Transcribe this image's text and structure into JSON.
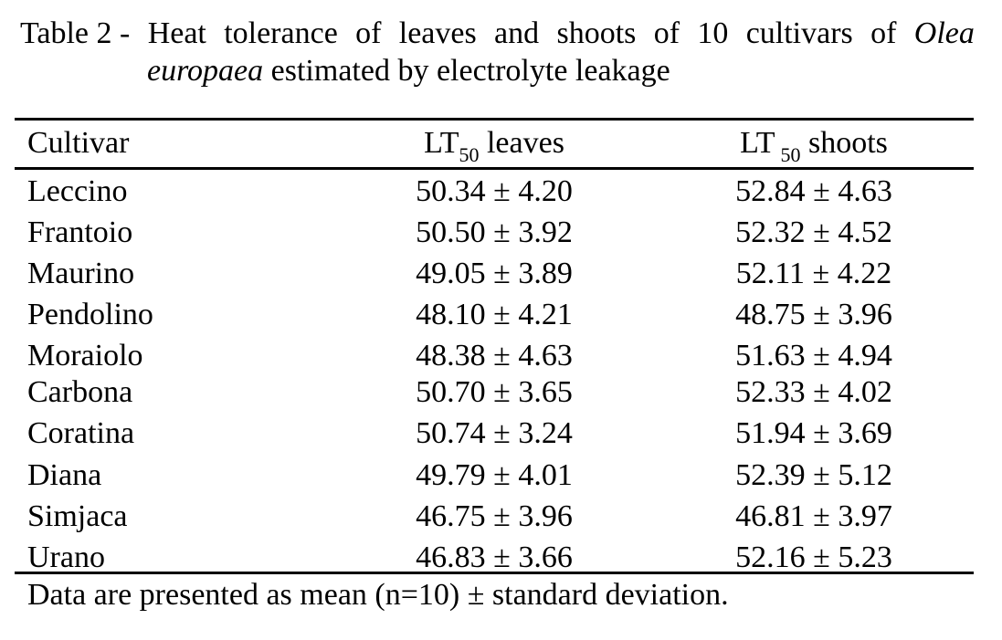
{
  "caption": {
    "prefix": "Table 2 -",
    "words": [
      "Heat",
      "tolerance",
      "of",
      "leaves",
      "and",
      "shoots",
      "of",
      "10",
      "cultivars",
      "of"
    ],
    "genus": "Olea",
    "species": "europaea",
    "rest": " estimated by electrolyte leakage"
  },
  "table": {
    "headers": {
      "cultivar": "Cultivar",
      "leaves_main": "LT",
      "leaves_sub": "50",
      "leaves_tail": " leaves",
      "shoots_main": "LT",
      "shoots_sub": "50",
      "shoots_tail": " shoots"
    },
    "rows": [
      {
        "cultivar": "Leccino",
        "leaves": "50.34 ± 4.20",
        "shoots": "52.84 ± 4.63"
      },
      {
        "cultivar": "Frantoio",
        "leaves": "50.50 ± 3.92",
        "shoots": "52.32 ± 4.52"
      },
      {
        "cultivar": "Maurino",
        "leaves": "49.05 ± 3.89",
        "shoots": "52.11 ± 4.22"
      },
      {
        "cultivar": "Pendolino",
        "leaves": "48.10 ± 4.21",
        "shoots": "48.75 ± 3.96"
      },
      {
        "cultivar": "Moraiolo",
        "leaves": "48.38 ± 4.63",
        "shoots": "51.63 ± 4.94"
      },
      {
        "cultivar": "Carbona",
        "leaves": "50.70 ± 3.65",
        "shoots": "52.33 ± 4.02"
      },
      {
        "cultivar": "Coratina",
        "leaves": "50.74 ± 3.24",
        "shoots": "51.94 ± 3.69"
      },
      {
        "cultivar": "Diana",
        "leaves": "49.79 ± 4.01",
        "shoots": "52.39 ± 5.12"
      },
      {
        "cultivar": "Simjaca",
        "leaves": "46.75 ± 3.96",
        "shoots": "46.81 ± 3.97"
      },
      {
        "cultivar": "Urano",
        "leaves": "46.83 ± 3.66",
        "shoots": "52.16 ± 5.23"
      }
    ]
  },
  "footnote": "Data are presented as mean (n=10) ± standard deviation."
}
